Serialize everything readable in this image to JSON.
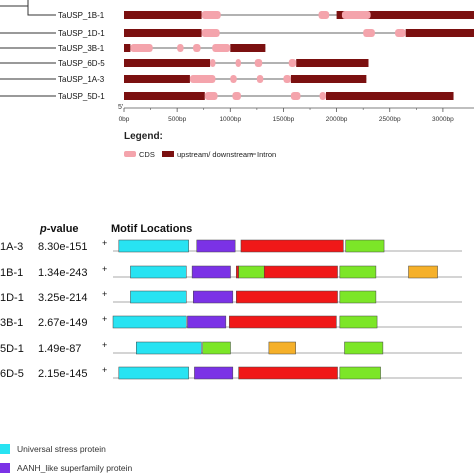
{
  "gene_structure": {
    "axis_range_bp": [
      0,
      3000
    ],
    "genes": [
      {
        "name": "TaUSP_1B-1",
        "length": 3300,
        "utr": [
          [
            0,
            730
          ],
          [
            2000,
            3300
          ]
        ],
        "cds": [
          [
            730,
            910
          ],
          [
            1830,
            1930
          ],
          [
            2050,
            2320
          ]
        ]
      },
      {
        "name": "TaUSP_1D-1",
        "length": 3350,
        "utr": [
          [
            0,
            730
          ],
          [
            2650,
            3350
          ]
        ],
        "cds": [
          [
            730,
            900
          ],
          [
            2250,
            2360
          ],
          [
            2550,
            2650
          ]
        ]
      },
      {
        "name": "TaUSP_3B-1",
        "length": 1330,
        "utr": [
          [
            0,
            60
          ],
          [
            1000,
            1330
          ]
        ],
        "cds": [
          [
            60,
            270
          ],
          [
            500,
            560
          ],
          [
            650,
            720
          ],
          [
            830,
            1000
          ]
        ]
      },
      {
        "name": "TaUSP_6D-5",
        "length": 2300,
        "utr": [
          [
            0,
            810
          ],
          [
            1620,
            2300
          ]
        ],
        "cds": [
          [
            810,
            860
          ],
          [
            1050,
            1100
          ],
          [
            1230,
            1300
          ],
          [
            1550,
            1620
          ]
        ]
      },
      {
        "name": "TaUSP_1A-3",
        "length": 2280,
        "utr": [
          [
            0,
            620
          ],
          [
            1570,
            2280
          ]
        ],
        "cds": [
          [
            620,
            860
          ],
          [
            1000,
            1060
          ],
          [
            1250,
            1310
          ],
          [
            1500,
            1570
          ]
        ]
      },
      {
        "name": "TaUSP_5D-1",
        "length": 3100,
        "utr": [
          [
            0,
            760
          ],
          [
            1900,
            3100
          ]
        ],
        "cds": [
          [
            760,
            880
          ],
          [
            1020,
            1100
          ],
          [
            1570,
            1660
          ],
          [
            1840,
            1900
          ]
        ]
      }
    ],
    "ticks": [
      "0bp",
      "500bp",
      "1000bp",
      "1500bp",
      "2000bp",
      "2500bp",
      "3000bp"
    ],
    "five_prime": "5'",
    "legend_title": "Legend:",
    "legend_items": [
      {
        "label": "CDS",
        "color": "#F4A4AC"
      },
      {
        "label": "upstream/ downstream",
        "color": "#7B1010"
      },
      {
        "label": "Intron",
        "color": "#555555"
      }
    ]
  },
  "motifs": {
    "header_pvalue_italic": "p",
    "header_pvalue_rest": "-value",
    "header_locations": "Motif Locations",
    "axis_range_aa": [
      0,
      300
    ],
    "colors": {
      "cyan": "#28E3F2",
      "purple": "#7B32E6",
      "red": "#F01818",
      "green": "#7CE628",
      "orange": "#F5B02A"
    },
    "rows": [
      {
        "label": "1A-3",
        "pvalue": "8.30e-151",
        "strand": "+",
        "length": 300,
        "blocks": [
          [
            5,
            65,
            "cyan"
          ],
          [
            72,
            105,
            "purple"
          ],
          [
            110,
            198,
            "red"
          ],
          [
            200,
            233,
            "green"
          ]
        ]
      },
      {
        "label": "1B-1",
        "pvalue": "1.34e-243",
        "strand": "+",
        "length": 300,
        "blocks": [
          [
            15,
            63,
            "cyan"
          ],
          [
            68,
            101,
            "purple"
          ],
          [
            106,
            108,
            "red"
          ],
          [
            108,
            130,
            "green"
          ],
          [
            130,
            193,
            "red"
          ],
          [
            195,
            226,
            "green"
          ],
          [
            254,
            279,
            "orange"
          ]
        ]
      },
      {
        "label": "1D-1",
        "pvalue": "3.25e-214",
        "strand": "+",
        "length": 300,
        "blocks": [
          [
            15,
            63,
            "cyan"
          ],
          [
            69,
            103,
            "purple"
          ],
          [
            106,
            193,
            "red"
          ],
          [
            195,
            226,
            "green"
          ]
        ]
      },
      {
        "label": "3B-1",
        "pvalue": "2.67e-149",
        "strand": "+",
        "length": 300,
        "blocks": [
          [
            0,
            63,
            "cyan"
          ],
          [
            64,
            97,
            "purple"
          ],
          [
            100,
            192,
            "red"
          ],
          [
            195,
            227,
            "green"
          ]
        ]
      },
      {
        "label": "5D-1",
        "pvalue": "1.49e-87",
        "strand": "+",
        "length": 300,
        "blocks": [
          [
            20,
            76,
            "cyan"
          ],
          [
            77,
            101,
            "green"
          ],
          [
            134,
            157,
            "orange"
          ],
          [
            199,
            232,
            "green"
          ]
        ]
      },
      {
        "label": "6D-5",
        "pvalue": "2.15e-145",
        "strand": "+",
        "length": 300,
        "blocks": [
          [
            5,
            65,
            "cyan"
          ],
          [
            70,
            103,
            "purple"
          ],
          [
            108,
            193,
            "red"
          ],
          [
            195,
            230,
            "green"
          ]
        ]
      }
    ],
    "legend_items": [
      {
        "label": "Universal stress protein",
        "color": "#28E3F2"
      },
      {
        "label": "AANH_like superfamily protein",
        "color": "#7B32E6"
      }
    ]
  }
}
